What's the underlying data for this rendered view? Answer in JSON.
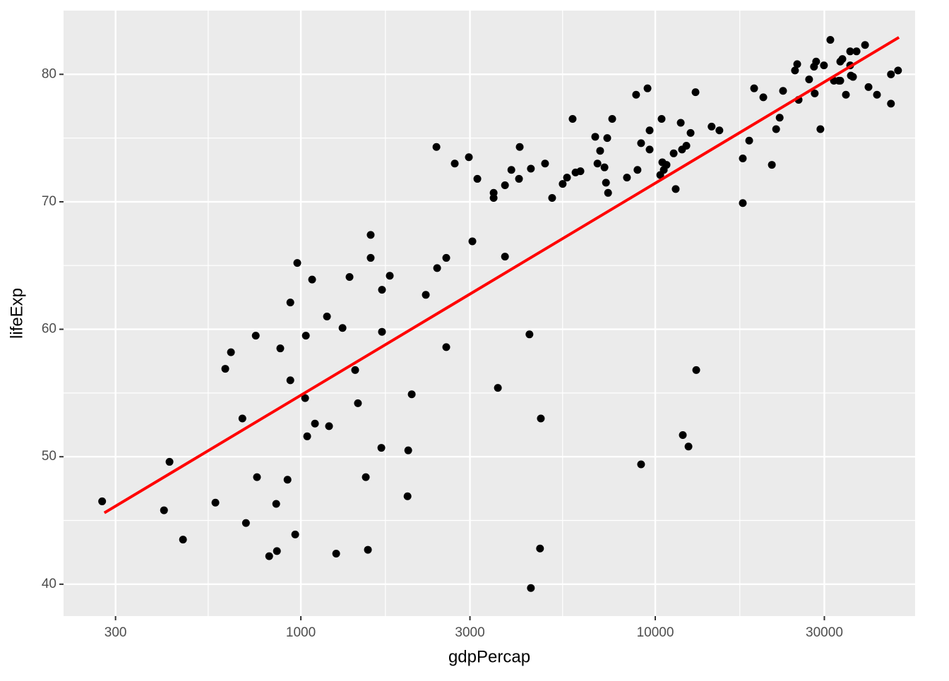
{
  "chart_data": {
    "type": "scatter",
    "xlabel": "gdpPercap",
    "ylabel": "lifeExp",
    "xscale": "log",
    "xlim": [
      214,
      54100
    ],
    "ylim": [
      37.5,
      85
    ],
    "xticks": [
      300,
      1000,
      3000,
      10000,
      30000
    ],
    "yticks": [
      40,
      50,
      60,
      70,
      80
    ],
    "grid": true,
    "color": "#000000",
    "x": [
      275,
      411,
      426,
      465,
      574,
      612,
      635,
      684,
      700,
      746,
      752,
      814,
      852,
      856,
      875,
      917,
      934,
      934,
      964,
      977,
      1028,
      1033,
      1042,
      1076,
      1096,
      1185,
      1201,
      1258,
      1311,
      1372,
      1423,
      1449,
      1525,
      1546,
      1574,
      1574,
      1687,
      1694,
      1694,
      1782,
      2000,
      2009,
      2055,
      2252,
      2413,
      2424,
      2572,
      2572,
      2718,
      2979,
      3048,
      3148,
      3499,
      3499,
      3597,
      3767,
      3767,
      3926,
      4126,
      4145,
      4416,
      4457,
      4457,
      4730,
      4755,
      4887,
      5117,
      5480,
      5636,
      5845,
      5957,
      6150,
      6770,
      6870,
      6990,
      7190,
      7260,
      7320,
      7360,
      7560,
      8320,
      8830,
      8910,
      9120,
      9120,
      9510,
      9640,
      9640,
      10330,
      10420,
      10470,
      10570,
      10760,
      11270,
      11420,
      11800,
      11900,
      11960,
      12240,
      12410,
      12580,
      12990,
      13050,
      14420,
      15170,
      17660,
      17660,
      18410,
      19010,
      20180,
      21330,
      21930,
      22440,
      22940,
      24790,
      25150,
      25380,
      27170,
      28050,
      28180,
      28440,
      29240,
      29920,
      31190,
      31920,
      32960,
      33270,
      33730,
      34510,
      35480,
      35480,
      35640,
      36140,
      36980,
      39080,
      39970,
      42230,
      46240,
      46240,
      48420,
      33270
    ],
    "values": [
      46.5,
      45.8,
      49.6,
      43.5,
      46.4,
      56.9,
      58.2,
      53.0,
      44.8,
      59.5,
      48.4,
      42.2,
      46.3,
      42.6,
      58.5,
      48.2,
      56.0,
      62.1,
      43.9,
      65.2,
      54.6,
      59.5,
      51.6,
      63.9,
      52.6,
      61.0,
      52.4,
      42.4,
      60.1,
      64.1,
      56.8,
      54.2,
      48.4,
      42.7,
      65.6,
      67.4,
      50.7,
      63.1,
      59.8,
      64.2,
      46.9,
      50.5,
      54.9,
      62.7,
      74.3,
      64.8,
      65.6,
      58.6,
      73.0,
      73.5,
      66.9,
      71.8,
      70.7,
      70.3,
      55.4,
      71.3,
      65.7,
      72.5,
      71.8,
      74.3,
      59.6,
      39.7,
      72.6,
      42.8,
      53.0,
      73.0,
      70.3,
      71.4,
      71.9,
      76.5,
      72.3,
      72.4,
      75.1,
      73.0,
      74.0,
      72.7,
      71.5,
      75.0,
      70.7,
      76.5,
      71.9,
      78.4,
      72.5,
      74.6,
      49.4,
      78.9,
      75.6,
      74.1,
      72.1,
      76.5,
      73.1,
      72.5,
      72.9,
      73.8,
      71.0,
      76.2,
      74.1,
      51.7,
      74.4,
      50.8,
      75.4,
      78.6,
      56.8,
      75.9,
      75.6,
      73.4,
      69.9,
      74.8,
      78.9,
      78.2,
      72.9,
      75.7,
      76.6,
      78.7,
      80.3,
      80.8,
      78.0,
      79.6,
      80.6,
      78.5,
      81.0,
      75.7,
      80.7,
      82.7,
      79.5,
      79.5,
      81.0,
      81.2,
      78.4,
      81.8,
      80.7,
      79.9,
      79.8,
      81.8,
      82.3,
      79.0,
      78.4,
      77.7,
      80.0,
      80.3,
      79.5
    ],
    "trend": {
      "x": [
        279,
        48700
      ],
      "values": [
        45.6,
        82.9
      ],
      "color": "#ff0000"
    }
  }
}
